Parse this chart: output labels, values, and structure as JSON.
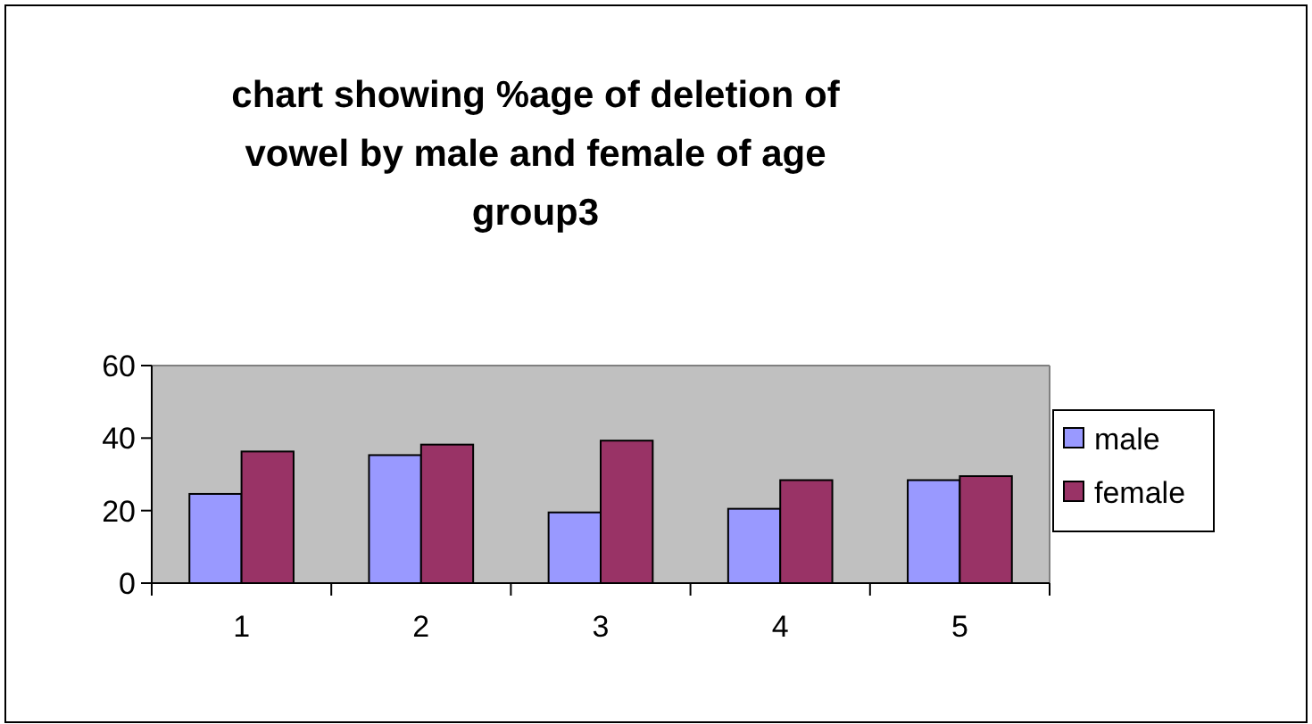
{
  "chart_data": {
    "type": "bar",
    "title": "chart showing %age of deletion of vowel by male and female of age group3",
    "categories": [
      "1",
      "2",
      "3",
      "4",
      "5"
    ],
    "series": [
      {
        "name": "male",
        "color": "#9999ff",
        "values": [
          24.6,
          35.3,
          19.5,
          20.5,
          28.4
        ]
      },
      {
        "name": "female",
        "color": "#993366",
        "values": [
          36.3,
          38.2,
          39.3,
          28.4,
          29.5
        ]
      }
    ],
    "ylim": [
      0,
      60
    ],
    "yticks": [
      0,
      20,
      40,
      60
    ],
    "grid": false,
    "legend": "right"
  }
}
